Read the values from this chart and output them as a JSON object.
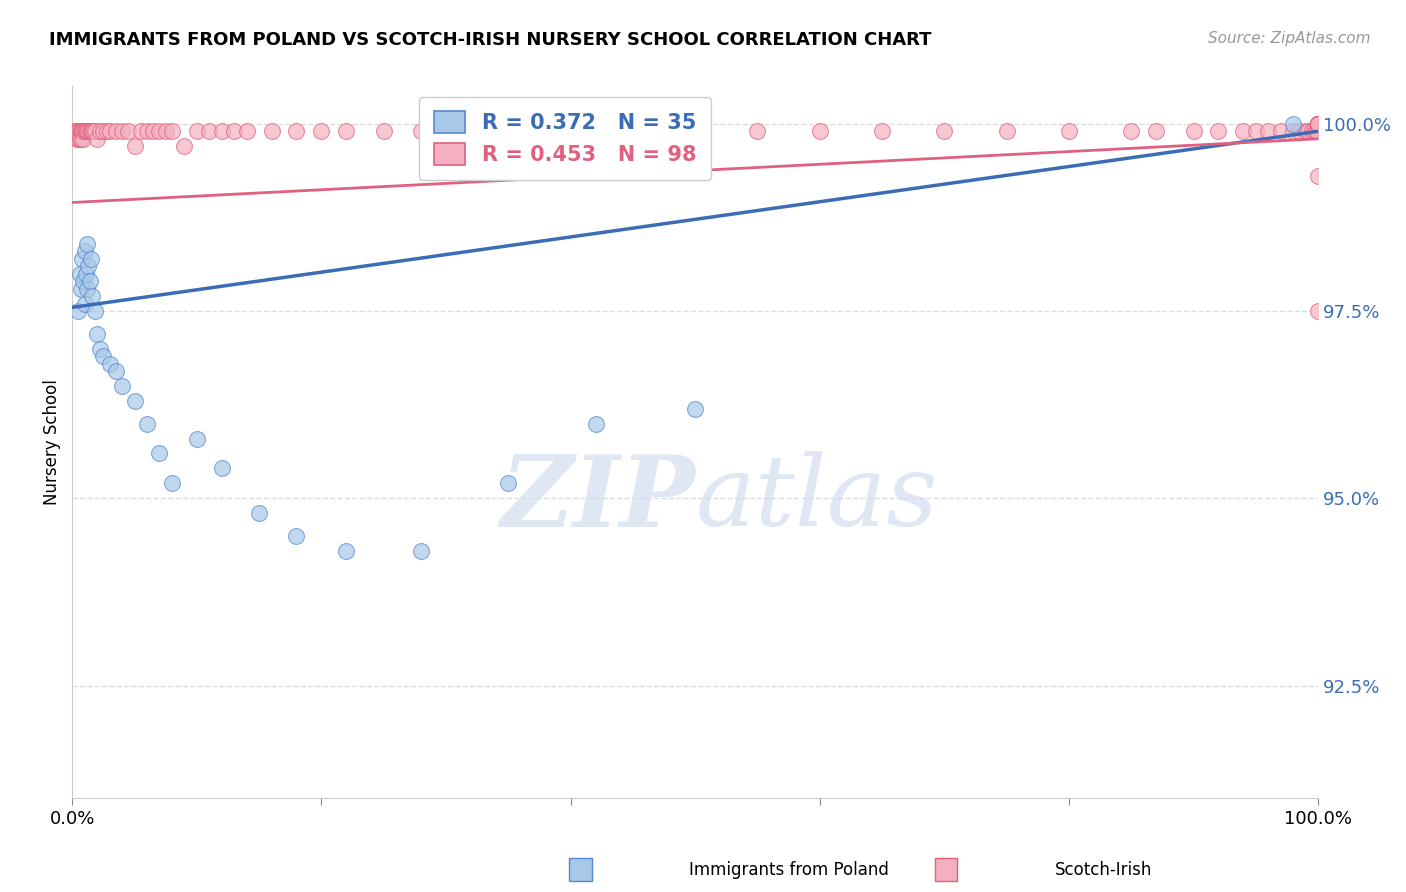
{
  "title": "IMMIGRANTS FROM POLAND VS SCOTCH-IRISH NURSERY SCHOOL CORRELATION CHART",
  "source": "Source: ZipAtlas.com",
  "ylabel": "Nursery School",
  "xlim": [
    0.0,
    1.0
  ],
  "ylim": [
    0.91,
    1.005
  ],
  "yticks": [
    0.925,
    0.95,
    0.975,
    1.0
  ],
  "ytick_labels": [
    "92.5%",
    "95.0%",
    "97.5%",
    "100.0%"
  ],
  "poland_R": 0.372,
  "poland_N": 35,
  "scotch_R": 0.453,
  "scotch_N": 98,
  "poland_color": "#a8c8e8",
  "scotch_color": "#f4b0c0",
  "poland_edge_color": "#5588cc",
  "scotch_edge_color": "#e06080",
  "poland_line_color": "#3a6db5",
  "scotch_line_color": "#e06080",
  "legend_text_color": "#3a6db5",
  "legend_text_color2": "#e06080",
  "background_color": "#ffffff",
  "grid_color": "#dddddd",
  "poland_x": [
    0.005,
    0.006,
    0.007,
    0.008,
    0.009,
    0.01,
    0.01,
    0.011,
    0.012,
    0.012,
    0.013,
    0.014,
    0.015,
    0.016,
    0.018,
    0.02,
    0.022,
    0.025,
    0.03,
    0.035,
    0.04,
    0.05,
    0.06,
    0.07,
    0.08,
    0.1,
    0.12,
    0.15,
    0.18,
    0.22,
    0.28,
    0.35,
    0.42,
    0.5,
    0.98
  ],
  "poland_y": [
    0.975,
    0.98,
    0.978,
    0.982,
    0.979,
    0.983,
    0.976,
    0.98,
    0.978,
    0.984,
    0.981,
    0.979,
    0.982,
    0.977,
    0.975,
    0.972,
    0.97,
    0.969,
    0.968,
    0.967,
    0.965,
    0.963,
    0.96,
    0.956,
    0.952,
    0.958,
    0.954,
    0.948,
    0.945,
    0.943,
    0.943,
    0.952,
    0.96,
    0.962,
    1.0
  ],
  "scotch_x": [
    0.002,
    0.003,
    0.004,
    0.004,
    0.005,
    0.005,
    0.006,
    0.006,
    0.007,
    0.007,
    0.008,
    0.008,
    0.009,
    0.009,
    0.01,
    0.01,
    0.011,
    0.012,
    0.013,
    0.014,
    0.015,
    0.016,
    0.017,
    0.018,
    0.02,
    0.022,
    0.025,
    0.028,
    0.03,
    0.035,
    0.04,
    0.045,
    0.05,
    0.055,
    0.06,
    0.065,
    0.07,
    0.075,
    0.08,
    0.09,
    0.1,
    0.11,
    0.12,
    0.13,
    0.14,
    0.16,
    0.18,
    0.2,
    0.22,
    0.25,
    0.28,
    0.3,
    0.35,
    0.4,
    0.45,
    0.5,
    0.55,
    0.6,
    0.65,
    0.7,
    0.75,
    0.8,
    0.85,
    0.87,
    0.9,
    0.92,
    0.94,
    0.95,
    0.96,
    0.97,
    0.98,
    0.985,
    0.99,
    0.992,
    0.995,
    0.997,
    0.998,
    0.999,
    1.0,
    1.0,
    1.0,
    1.0,
    1.0,
    1.0,
    1.0,
    1.0,
    1.0,
    1.0,
    1.0,
    1.0,
    1.0,
    1.0,
    1.0,
    1.0,
    1.0,
    1.0,
    1.0,
    1.0
  ],
  "scotch_y": [
    0.999,
    0.999,
    0.999,
    0.998,
    0.999,
    0.998,
    0.999,
    0.998,
    0.999,
    0.998,
    0.999,
    0.999,
    0.999,
    0.998,
    0.999,
    0.999,
    0.999,
    0.999,
    0.999,
    0.999,
    0.999,
    0.999,
    0.999,
    0.999,
    0.998,
    0.999,
    0.999,
    0.999,
    0.999,
    0.999,
    0.999,
    0.999,
    0.997,
    0.999,
    0.999,
    0.999,
    0.999,
    0.999,
    0.999,
    0.997,
    0.999,
    0.999,
    0.999,
    0.999,
    0.999,
    0.999,
    0.999,
    0.999,
    0.999,
    0.999,
    0.999,
    0.999,
    0.999,
    0.999,
    0.999,
    0.999,
    0.999,
    0.999,
    0.999,
    0.999,
    0.999,
    0.999,
    0.999,
    0.999,
    0.999,
    0.999,
    0.999,
    0.999,
    0.999,
    0.999,
    0.999,
    0.999,
    0.999,
    0.999,
    0.999,
    0.999,
    0.999,
    0.999,
    1.0,
    1.0,
    1.0,
    1.0,
    1.0,
    1.0,
    1.0,
    1.0,
    1.0,
    1.0,
    1.0,
    1.0,
    1.0,
    1.0,
    1.0,
    1.0,
    1.0,
    1.0,
    0.993,
    0.975
  ]
}
